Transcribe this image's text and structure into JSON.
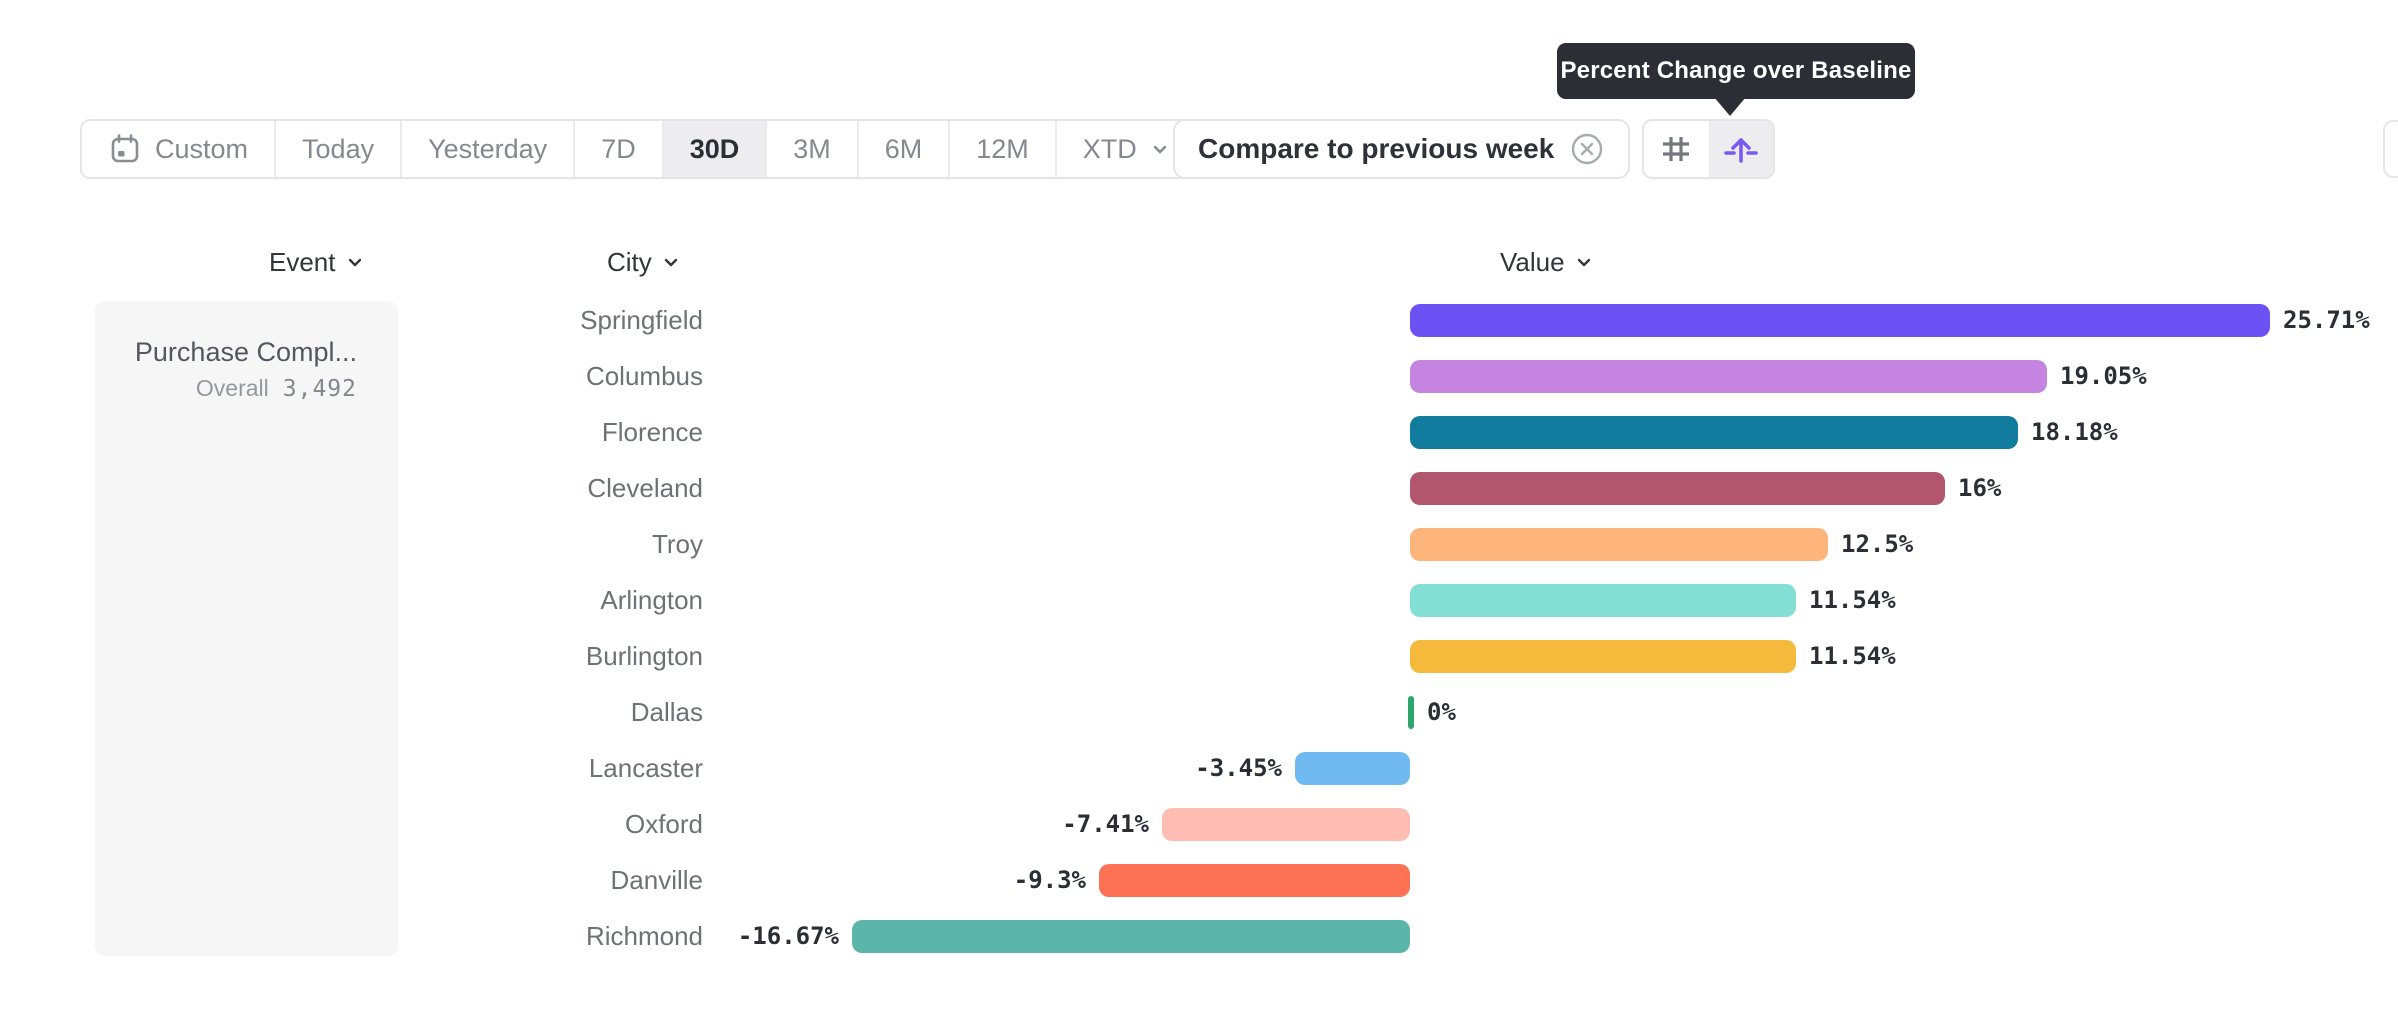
{
  "tooltip": {
    "text": "Percent Change over Baseline",
    "bg_color": "#2b2e35"
  },
  "toolbar": {
    "date_ranges": [
      {
        "label": "Custom",
        "icon": "calendar-icon",
        "selected": false
      },
      {
        "label": "Today",
        "selected": false
      },
      {
        "label": "Yesterday",
        "selected": false
      },
      {
        "label": "7D",
        "selected": false
      },
      {
        "label": "30D",
        "selected": true
      },
      {
        "label": "3M",
        "selected": false
      },
      {
        "label": "6M",
        "selected": false
      },
      {
        "label": "12M",
        "selected": false
      },
      {
        "label": "XTD",
        "selected": false,
        "has_dropdown": true
      }
    ],
    "compare_chip": {
      "label": "Compare to previous week",
      "close_icon": "circle-x-icon"
    },
    "view_toggle": [
      {
        "icon": "grid-icon",
        "selected": false
      },
      {
        "icon": "baseline-arrow-icon",
        "selected": true,
        "accent_color": "#7a5af5"
      }
    ]
  },
  "columns": [
    {
      "label": "Event",
      "sortable": true
    },
    {
      "label": "City",
      "sortable": true
    },
    {
      "label": "Value",
      "sortable": true
    }
  ],
  "event_panel": {
    "event_name": "Purchase Compl...",
    "overall_label": "Overall",
    "overall_value": "3,492"
  },
  "chart_data": {
    "type": "bar",
    "orientation": "horizontal",
    "title": "Percent Change over Baseline",
    "xlabel": "Value",
    "ylabel": "City",
    "baseline": 0,
    "categories": [
      "Springfield",
      "Columbus",
      "Florence",
      "Cleveland",
      "Troy",
      "Arlington",
      "Burlington",
      "Dallas",
      "Lancaster",
      "Oxford",
      "Danville",
      "Richmond"
    ],
    "values": [
      25.71,
      19.05,
      18.18,
      16,
      12.5,
      11.54,
      11.54,
      0,
      -3.45,
      -7.41,
      -9.3,
      -16.67
    ],
    "value_labels": [
      "25.71%",
      "19.05%",
      "18.18%",
      "16%",
      "12.5%",
      "11.54%",
      "11.54%",
      "0%",
      "-3.45%",
      "-7.41%",
      "-9.3%",
      "-16.67%"
    ],
    "bar_colors": [
      "#6C52F4",
      "#C584DF",
      "#117C9E",
      "#B25670",
      "#FDB57B",
      "#83DED3",
      "#F5BA3C",
      "#2EA56B",
      "#70BAF1",
      "#FDBDB3",
      "#FD7154",
      "#5CB5A9"
    ]
  }
}
